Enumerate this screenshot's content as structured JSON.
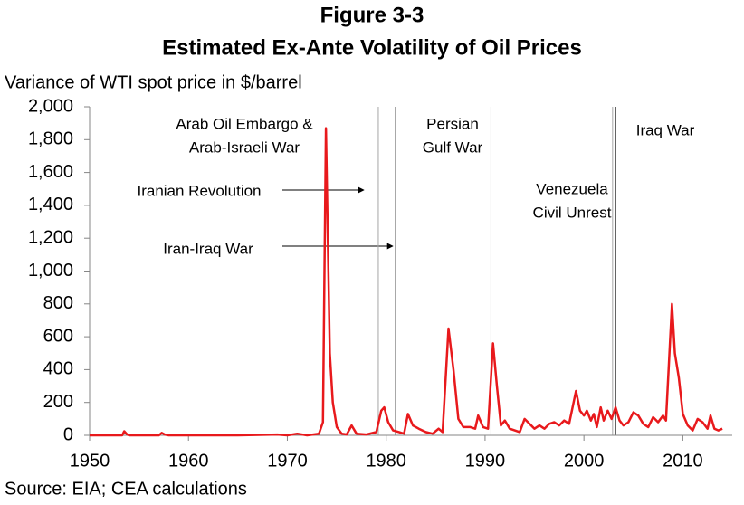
{
  "chart_data": {
    "type": "line",
    "title": "Figure 3-3",
    "subtitle": "Estimated Ex-Ante Volatility of Oil Prices",
    "y_label": "Variance of WTI spot price in $/barrel",
    "source": "Source: EIA; CEA calculations",
    "xlim": [
      1950,
      2015
    ],
    "xticks": [
      1950,
      1960,
      1970,
      1980,
      1990,
      2000,
      2010
    ],
    "ylim": [
      0,
      2000
    ],
    "yticks": [
      0,
      200,
      400,
      600,
      800,
      {
        "value": 1000,
        "label": "1,000"
      },
      {
        "value": 1200,
        "label": "1,200"
      },
      {
        "value": 1400,
        "label": "1,400"
      },
      {
        "value": 1600,
        "label": "1,600"
      },
      {
        "value": 1800,
        "label": "1,800"
      },
      {
        "value": 2000,
        "label": "2,000"
      }
    ],
    "series": [
      {
        "color": "#e8191c",
        "x": [
          1950,
          1953.3,
          1953.5,
          1953.8,
          1954,
          1957,
          1957.3,
          1957.6,
          1958,
          1965,
          1969,
          1970,
          1971,
          1972,
          1973.2,
          1973.6,
          1973.9,
          1974.3,
          1974.6,
          1975,
          1975.5,
          1976,
          1976.5,
          1977,
          1978,
          1979,
          1979.5,
          1979.8,
          1980.2,
          1980.7,
          1981.3,
          1981.8,
          1982.2,
          1982.7,
          1983.3,
          1984,
          1984.7,
          1985.3,
          1985.7,
          1986.3,
          1986.8,
          1987.3,
          1987.8,
          1988.5,
          1989,
          1989.3,
          1989.8,
          1990.3,
          1990.8,
          1991.2,
          1991.6,
          1992,
          1992.5,
          1993,
          1993.5,
          1994,
          1994.5,
          1995,
          1995.5,
          1996,
          1996.5,
          1997,
          1997.5,
          1998,
          1998.5,
          1999.2,
          1999.6,
          2000,
          2000.3,
          2000.7,
          2001,
          2001.3,
          2001.7,
          2002,
          2002.4,
          2002.8,
          2003.2,
          2003.6,
          2004,
          2004.5,
          2005,
          2005.5,
          2006,
          2006.5,
          2007,
          2007.5,
          2008,
          2008.3,
          2008.9,
          2009.2,
          2009.6,
          2010,
          2010.5,
          2011,
          2011.5,
          2012,
          2012.5,
          2012.8,
          2013.2,
          2013.6,
          2014
        ],
        "values": [
          0,
          0,
          25,
          5,
          0,
          0,
          15,
          5,
          0,
          0,
          5,
          0,
          10,
          0,
          10,
          80,
          1870,
          500,
          200,
          50,
          10,
          5,
          60,
          10,
          5,
          20,
          150,
          170,
          80,
          30,
          20,
          10,
          130,
          60,
          40,
          20,
          10,
          40,
          20,
          650,
          400,
          100,
          50,
          50,
          40,
          120,
          50,
          40,
          560,
          300,
          60,
          90,
          40,
          30,
          20,
          100,
          70,
          40,
          60,
          40,
          70,
          80,
          60,
          90,
          70,
          270,
          150,
          120,
          150,
          90,
          130,
          50,
          170,
          90,
          150,
          100,
          170,
          90,
          60,
          80,
          140,
          120,
          70,
          50,
          110,
          80,
          120,
          90,
          800,
          500,
          350,
          130,
          60,
          30,
          100,
          80,
          40,
          120,
          40,
          30,
          40
        ]
      }
    ],
    "event_lines": [
      {
        "x": 1979.2,
        "color": "#a6a6a6"
      },
      {
        "x": 1980.9,
        "color": "#a6a6a6"
      },
      {
        "x": 1990.6,
        "color": "#000000"
      },
      {
        "x": 2002.9,
        "color": "#a6a6a6"
      },
      {
        "x": 2003.2,
        "color": "#000000"
      }
    ],
    "annotations": [
      {
        "text": [
          "Arab Oil Embargo &",
          "Arab-Israeli War"
        ]
      },
      {
        "text": [
          "Persian",
          "Gulf War"
        ]
      },
      {
        "text": [
          "Iraq War"
        ]
      },
      {
        "text": [
          "Iranian Revolution"
        ]
      },
      {
        "text": [
          "Venezuela",
          "Civil Unrest"
        ]
      },
      {
        "text": [
          "Iran-Iraq War"
        ]
      }
    ]
  }
}
